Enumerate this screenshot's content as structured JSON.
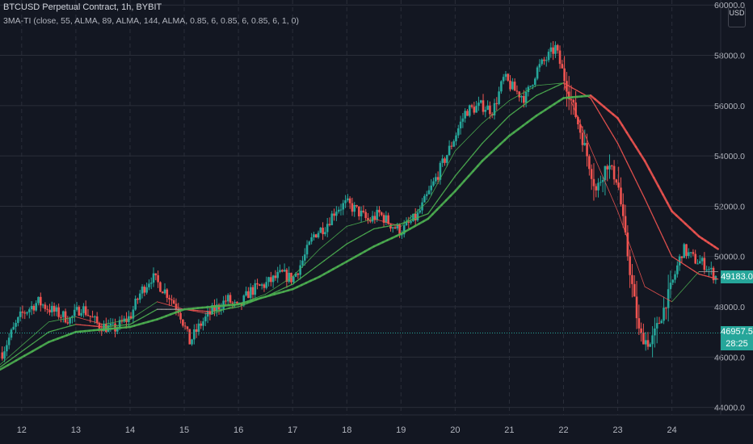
{
  "header": {
    "title": "BTCUSD Perpetual Contract, 1h, BYBIT",
    "indicator": "3MA-TI (close, 55, ALMA, 89, ALMA, 144, ALMA, 0.85, 6, 0.85, 6, 0.85, 6, 1, 0)"
  },
  "currency": "USD",
  "price_tag": {
    "label": "49183.0",
    "value": 49183
  },
  "current_price": {
    "label": "46957.5",
    "countdown": "28:25",
    "value": 46957.5
  },
  "colors": {
    "background": "#131722",
    "up": "#26a69a",
    "down": "#ef5350",
    "ma_rising": "#4caf50",
    "ma_falling": "#ef5350",
    "ma_flat": "#9e9e9e"
  },
  "chart_data": {
    "type": "line",
    "y_axis": {
      "range": [
        43700,
        60200
      ],
      "ticks": [
        44000,
        46000,
        48000,
        50000,
        52000,
        54000,
        56000,
        58000,
        60000
      ],
      "tick_labels": [
        "44000.0",
        "46000.0",
        "48000.0",
        "50000.0",
        "52000.0",
        "54000.0",
        "56000.0",
        "58000.0",
        "60000.0"
      ]
    },
    "x_axis": {
      "range": [
        11.6,
        24.9
      ],
      "ticks": [
        12,
        13,
        14,
        15,
        16,
        17,
        18,
        19,
        20,
        21,
        22,
        23,
        24
      ],
      "tick_labels": [
        "12",
        "13",
        "14",
        "15",
        "16",
        "17",
        "18",
        "19",
        "20",
        "21",
        "22",
        "23",
        "24"
      ]
    },
    "price_anchors": [
      [
        11.6,
        46000
      ],
      [
        11.8,
        46900
      ],
      [
        12.0,
        47700
      ],
      [
        12.3,
        48200
      ],
      [
        12.6,
        47800
      ],
      [
        12.9,
        47500
      ],
      [
        13.1,
        48000
      ],
      [
        13.4,
        47300
      ],
      [
        13.7,
        47100
      ],
      [
        14.0,
        47600
      ],
      [
        14.2,
        48600
      ],
      [
        14.4,
        49200
      ],
      [
        14.7,
        48500
      ],
      [
        14.9,
        47900
      ],
      [
        15.1,
        46600
      ],
      [
        15.3,
        47300
      ],
      [
        15.5,
        47800
      ],
      [
        15.8,
        48300
      ],
      [
        16.0,
        47900
      ],
      [
        16.2,
        48600
      ],
      [
        16.5,
        48900
      ],
      [
        16.8,
        49300
      ],
      [
        17.0,
        49100
      ],
      [
        17.2,
        49900
      ],
      [
        17.4,
        50900
      ],
      [
        17.6,
        51200
      ],
      [
        17.8,
        51900
      ],
      [
        18.0,
        52100
      ],
      [
        18.2,
        51800
      ],
      [
        18.4,
        51400
      ],
      [
        18.6,
        51700
      ],
      [
        18.8,
        51300
      ],
      [
        19.0,
        51000
      ],
      [
        19.3,
        51600
      ],
      [
        19.6,
        52900
      ],
      [
        19.9,
        54300
      ],
      [
        20.2,
        55800
      ],
      [
        20.5,
        56000
      ],
      [
        20.7,
        55800
      ],
      [
        20.9,
        57100
      ],
      [
        21.1,
        56600
      ],
      [
        21.3,
        56300
      ],
      [
        21.5,
        57400
      ],
      [
        21.7,
        57900
      ],
      [
        21.85,
        58300
      ],
      [
        22.0,
        57200
      ],
      [
        22.2,
        55800
      ],
      [
        22.4,
        54300
      ],
      [
        22.6,
        52600
      ],
      [
        22.8,
        53700
      ],
      [
        23.0,
        53000
      ],
      [
        23.2,
        49800
      ],
      [
        23.4,
        46900
      ],
      [
        23.6,
        46500
      ],
      [
        23.8,
        47600
      ],
      [
        24.0,
        48900
      ],
      [
        24.2,
        50300
      ],
      [
        24.4,
        49900
      ],
      [
        24.6,
        49700
      ],
      [
        24.8,
        49200
      ]
    ],
    "series": [
      {
        "values": [
          [
            11.6,
            45700
          ],
          [
            12.5,
            47400
          ],
          [
            13.0,
            47600
          ],
          [
            13.5,
            47300
          ],
          [
            14.0,
            47500
          ],
          [
            14.5,
            48200
          ],
          [
            15.0,
            47900
          ],
          [
            15.5,
            47700
          ],
          [
            16.0,
            48100
          ],
          [
            16.5,
            48500
          ],
          [
            17.0,
            49200
          ],
          [
            17.5,
            50300
          ],
          [
            18.0,
            51200
          ],
          [
            18.5,
            51500
          ],
          [
            19.0,
            51200
          ],
          [
            19.5,
            52200
          ],
          [
            20.0,
            54200
          ],
          [
            20.5,
            55300
          ],
          [
            21.0,
            56200
          ],
          [
            21.5,
            56800
          ],
          [
            22.0,
            56900
          ],
          [
            22.5,
            54300
          ],
          [
            23.0,
            51800
          ],
          [
            23.5,
            48800
          ],
          [
            24.0,
            48200
          ],
          [
            24.5,
            49400
          ],
          [
            24.85,
            49400
          ]
        ]
      },
      {
        "values": [
          [
            11.6,
            45600
          ],
          [
            12.5,
            47000
          ],
          [
            13.0,
            47300
          ],
          [
            13.5,
            47200
          ],
          [
            14.0,
            47300
          ],
          [
            14.5,
            47900
          ],
          [
            15.0,
            47900
          ],
          [
            15.5,
            47800
          ],
          [
            16.0,
            48000
          ],
          [
            16.5,
            48400
          ],
          [
            17.0,
            48900
          ],
          [
            17.5,
            49700
          ],
          [
            18.0,
            50500
          ],
          [
            18.5,
            51100
          ],
          [
            19.0,
            51300
          ],
          [
            19.5,
            51700
          ],
          [
            20.0,
            53200
          ],
          [
            20.5,
            54500
          ],
          [
            21.0,
            55600
          ],
          [
            21.5,
            56400
          ],
          [
            22.0,
            56900
          ],
          [
            22.5,
            56300
          ],
          [
            23.0,
            54500
          ],
          [
            23.5,
            52300
          ],
          [
            24.0,
            50000
          ],
          [
            24.5,
            49300
          ],
          [
            24.85,
            49100
          ]
        ]
      },
      {
        "values": [
          [
            11.6,
            45500
          ],
          [
            12.5,
            46600
          ],
          [
            13.0,
            47000
          ],
          [
            13.5,
            47100
          ],
          [
            14.0,
            47200
          ],
          [
            14.5,
            47500
          ],
          [
            15.0,
            47900
          ],
          [
            15.5,
            48000
          ],
          [
            16.0,
            48100
          ],
          [
            16.5,
            48400
          ],
          [
            17.0,
            48700
          ],
          [
            17.5,
            49200
          ],
          [
            18.0,
            49800
          ],
          [
            18.5,
            50400
          ],
          [
            19.0,
            50900
          ],
          [
            19.5,
            51500
          ],
          [
            20.0,
            52600
          ],
          [
            20.5,
            53800
          ],
          [
            21.0,
            54800
          ],
          [
            21.5,
            55600
          ],
          [
            22.0,
            56300
          ],
          [
            22.5,
            56400
          ],
          [
            23.0,
            55500
          ],
          [
            23.5,
            53800
          ],
          [
            24.0,
            51800
          ],
          [
            24.5,
            50800
          ],
          [
            24.85,
            50300
          ]
        ]
      }
    ],
    "grid": true,
    "legend": "none"
  }
}
